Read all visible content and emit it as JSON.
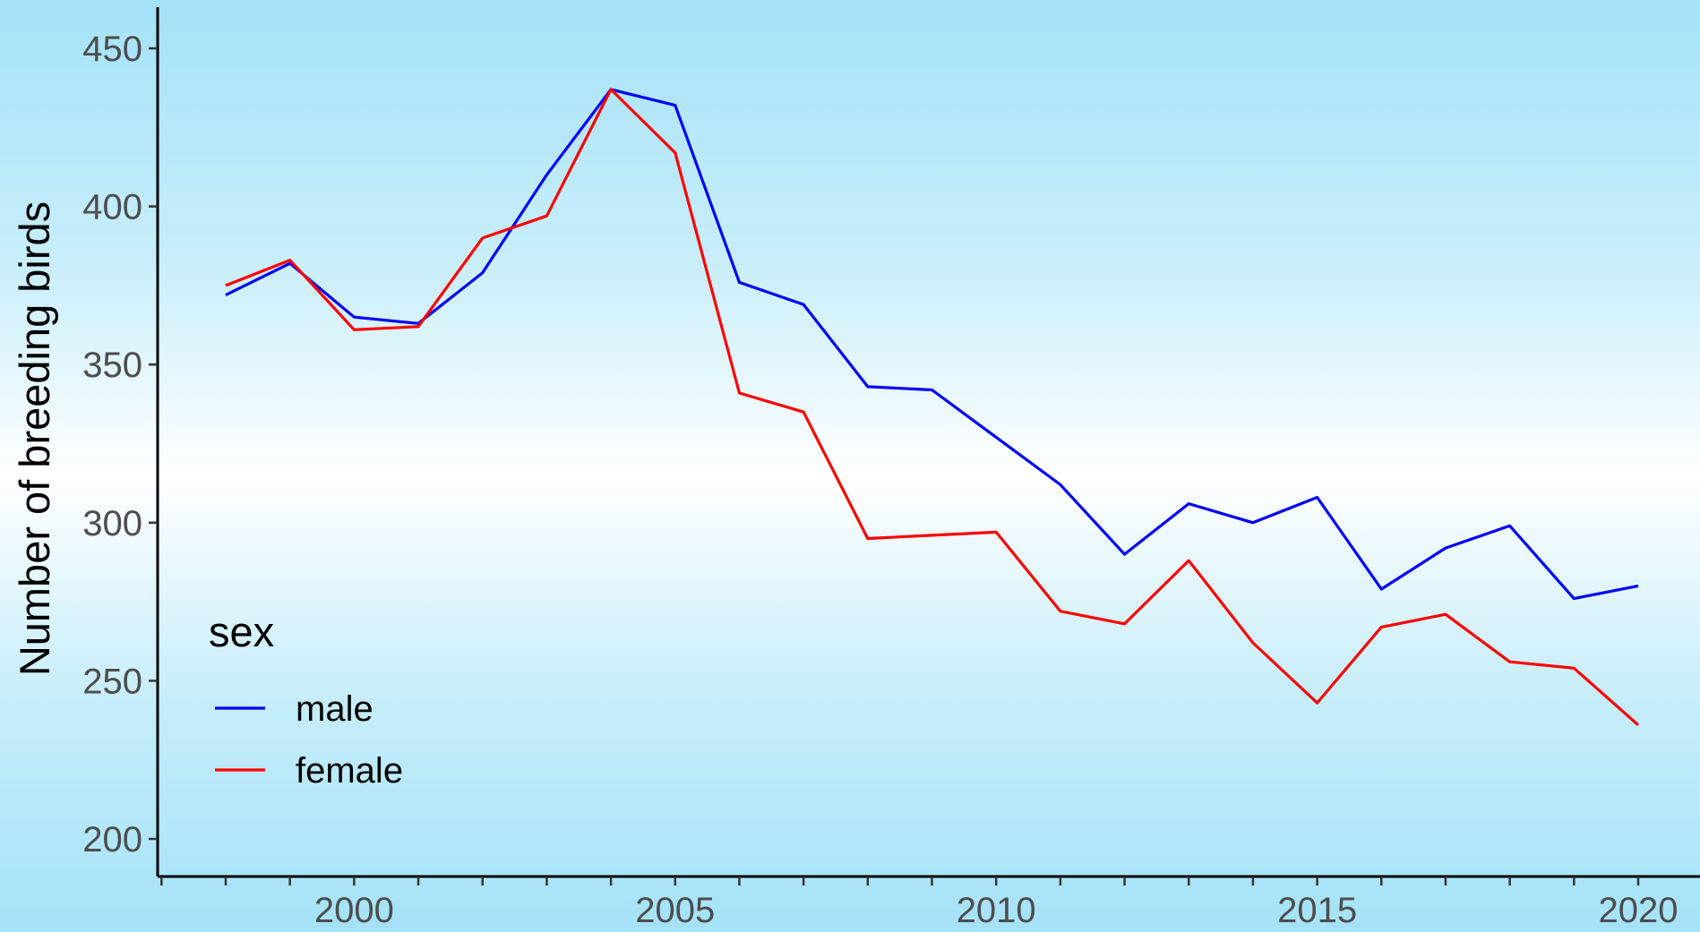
{
  "chart_data": {
    "type": "line",
    "title": "",
    "xlabel": "",
    "ylabel": "Number of breeding birds",
    "x": [
      1998,
      1999,
      2000,
      2001,
      2002,
      2003,
      2004,
      2005,
      2006,
      2007,
      2008,
      2009,
      2010,
      2011,
      2012,
      2013,
      2014,
      2015,
      2016,
      2017,
      2018,
      2019,
      2020
    ],
    "series": [
      {
        "name": "male",
        "color": "#0000ff",
        "values": [
          372,
          382,
          365,
          363,
          379,
          410,
          437,
          432,
          376,
          369,
          343,
          342,
          327,
          312,
          290,
          306,
          300,
          308,
          279,
          292,
          299,
          276,
          280
        ]
      },
      {
        "name": "female",
        "color": "#ff0000",
        "values": [
          375,
          383,
          361,
          362,
          390,
          397,
          437,
          417,
          341,
          335,
          295,
          296,
          297,
          272,
          268,
          288,
          262,
          243,
          267,
          271,
          256,
          254,
          236
        ]
      }
    ],
    "xlim": [
      1997.5,
      2020.7
    ],
    "ylim": [
      195,
      460
    ],
    "x_ticks": [
      2000,
      2005,
      2010,
      2015,
      2020
    ],
    "x_tick_labels": [
      "2000",
      "2005",
      "2010",
      "2015",
      "2020"
    ],
    "x_minor_ticks": [
      1997,
      1998,
      1999,
      2001,
      2002,
      2003,
      2004,
      2006,
      2007,
      2008,
      2009,
      2011,
      2012,
      2013,
      2014,
      2016,
      2017,
      2018,
      2019
    ],
    "y_ticks": [
      200,
      250,
      300,
      350,
      400,
      450
    ],
    "y_tick_labels": [
      "200",
      "250",
      "300",
      "350",
      "400",
      "450"
    ],
    "grid": false,
    "legend": {
      "title": "sex",
      "placement": "bottom-left",
      "entries": [
        "male",
        "female"
      ]
    }
  }
}
